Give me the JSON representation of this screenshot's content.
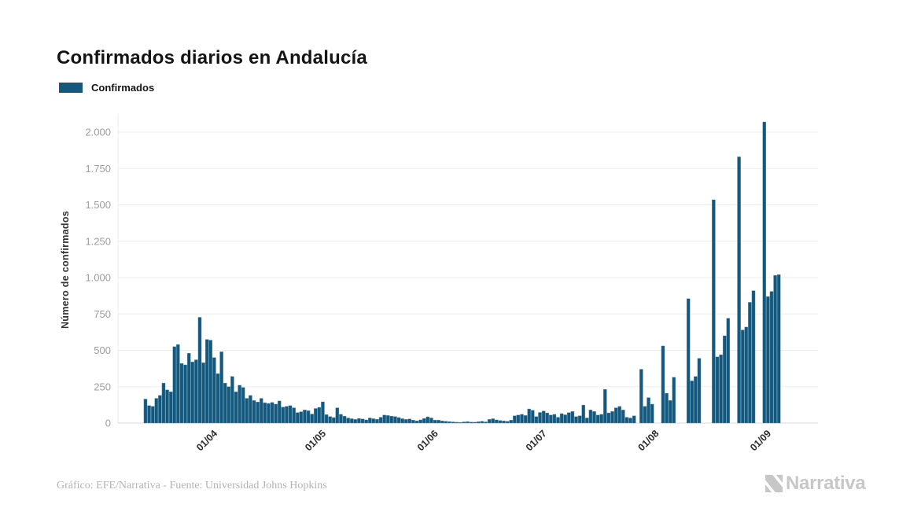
{
  "header": {
    "title": "Confirmados diarios en Andalucía"
  },
  "legend": {
    "label": "Confirmados",
    "color": "#15587d"
  },
  "footer": {
    "credit": "Gráfico: EFE/Narrativa - Fuente: Universidad Johns Hopkins"
  },
  "brand": {
    "name": "Narrativa",
    "color": "#c7c7c7"
  },
  "chart_data": {
    "type": "bar",
    "title": "Confirmados diarios en Andalucía",
    "series_name": "Confirmados",
    "xlabel": "",
    "ylabel": "Número de confirmados",
    "ylim": [
      0,
      2100
    ],
    "grid": true,
    "legend_position": "top-left",
    "bar_color": "#15587d",
    "y_ticks": [
      {
        "value": 0,
        "label": "0"
      },
      {
        "value": 250,
        "label": "250"
      },
      {
        "value": 500,
        "label": "500"
      },
      {
        "value": 750,
        "label": "750"
      },
      {
        "value": 1000,
        "label": "1.000"
      },
      {
        "value": 1250,
        "label": "1.250"
      },
      {
        "value": 1500,
        "label": "1.500"
      },
      {
        "value": 1750,
        "label": "1.750"
      },
      {
        "value": 2000,
        "label": "2.000"
      }
    ],
    "x_tick_labels": [
      "01/04",
      "01/05",
      "01/06",
      "01/07",
      "01/08",
      "01/09"
    ],
    "x": [
      "12/03",
      "13/03",
      "14/03",
      "15/03",
      "16/03",
      "17/03",
      "18/03",
      "19/03",
      "20/03",
      "21/03",
      "22/03",
      "23/03",
      "24/03",
      "25/03",
      "26/03",
      "27/03",
      "28/03",
      "29/03",
      "30/03",
      "31/03",
      "01/04",
      "02/04",
      "03/04",
      "04/04",
      "05/04",
      "06/04",
      "07/04",
      "08/04",
      "09/04",
      "10/04",
      "11/04",
      "12/04",
      "13/04",
      "14/04",
      "15/04",
      "16/04",
      "17/04",
      "18/04",
      "19/04",
      "20/04",
      "21/04",
      "22/04",
      "23/04",
      "24/04",
      "25/04",
      "26/04",
      "27/04",
      "28/04",
      "29/04",
      "30/04",
      "01/05",
      "02/05",
      "03/05",
      "04/05",
      "05/05",
      "06/05",
      "07/05",
      "08/05",
      "09/05",
      "10/05",
      "11/05",
      "12/05",
      "13/05",
      "14/05",
      "15/05",
      "16/05",
      "17/05",
      "18/05",
      "19/05",
      "20/05",
      "21/05",
      "22/05",
      "23/05",
      "24/05",
      "25/05",
      "26/05",
      "27/05",
      "28/05",
      "29/05",
      "30/05",
      "31/05",
      "01/06",
      "02/06",
      "03/06",
      "04/06",
      "05/06",
      "06/06",
      "07/06",
      "08/06",
      "09/06",
      "10/06",
      "11/06",
      "12/06",
      "13/06",
      "14/06",
      "15/06",
      "16/06",
      "17/06",
      "18/06",
      "19/06",
      "20/06",
      "21/06",
      "22/06",
      "23/06",
      "24/06",
      "25/06",
      "26/06",
      "27/06",
      "28/06",
      "29/06",
      "30/06",
      "01/07",
      "02/07",
      "03/07",
      "04/07",
      "05/07",
      "06/07",
      "07/07",
      "08/07",
      "09/07",
      "10/07",
      "11/07",
      "12/07",
      "13/07",
      "14/07",
      "15/07",
      "16/07",
      "17/07",
      "18/07",
      "19/07",
      "20/07",
      "21/07",
      "22/07",
      "23/07",
      "24/07",
      "25/07",
      "26/07",
      "27/07",
      "28/07",
      "29/07",
      "30/07",
      "31/07",
      "01/08",
      "02/08",
      "03/08",
      "04/08",
      "05/08",
      "06/08",
      "07/08",
      "08/08",
      "09/08",
      "10/08",
      "11/08",
      "12/08",
      "13/08",
      "14/08",
      "15/08",
      "16/08",
      "17/08",
      "18/08",
      "19/08",
      "20/08",
      "21/08",
      "22/08",
      "23/08",
      "24/08",
      "25/08",
      "26/08",
      "27/08",
      "28/08",
      "29/08",
      "30/08",
      "31/08",
      "01/09",
      "02/09",
      "03/09"
    ],
    "values": [
      165,
      120,
      115,
      170,
      190,
      275,
      228,
      215,
      525,
      540,
      410,
      400,
      480,
      420,
      435,
      727,
      415,
      575,
      570,
      450,
      340,
      490,
      275,
      250,
      320,
      215,
      260,
      245,
      170,
      190,
      155,
      145,
      170,
      140,
      135,
      142,
      130,
      152,
      110,
      115,
      120,
      105,
      72,
      78,
      90,
      85,
      62,
      100,
      108,
      146,
      58,
      45,
      38,
      105,
      60,
      48,
      35,
      30,
      25,
      32,
      28,
      22,
      35,
      30,
      26,
      40,
      55,
      52,
      48,
      45,
      38,
      30,
      25,
      28,
      20,
      15,
      22,
      32,
      43,
      35,
      20,
      20,
      15,
      12,
      10,
      8,
      6,
      5,
      8,
      10,
      7,
      6,
      9,
      12,
      8,
      25,
      30,
      22,
      18,
      15,
      12,
      20,
      50,
      55,
      60,
      52,
      97,
      88,
      45,
      73,
      83,
      70,
      55,
      60,
      40,
      65,
      57,
      72,
      80,
      45,
      50,
      124,
      35,
      90,
      80,
      55,
      60,
      232,
      70,
      80,
      105,
      115,
      90,
      40,
      35,
      50,
      0,
      370,
      115,
      175,
      130,
      0,
      0,
      530,
      205,
      155,
      315,
      0,
      0,
      0,
      855,
      290,
      320,
      445,
      0,
      0,
      0,
      1535,
      455,
      470,
      600,
      720,
      0,
      0,
      1830,
      640,
      660,
      830,
      910,
      0,
      0,
      2070,
      870,
      905,
      1015,
      1020
    ]
  }
}
